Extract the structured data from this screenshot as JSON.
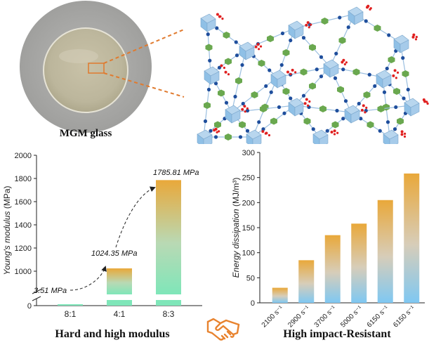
{
  "top": {
    "sample_caption": "MGM glass"
  },
  "colors": {
    "bar_top": "#e9a83a",
    "bar_mid": "#b9d9b4",
    "bar_bottom_left": "#7fe6b9",
    "bar_bottom_right": "#7fc8f2",
    "connector": "#e07a2e",
    "cube": "#8fc0e6",
    "green_node": "#6aa84f",
    "blue_node": "#1f4e9c",
    "red_node": "#e02020"
  },
  "chart_data": [
    {
      "type": "bar",
      "title": "Hard and high modulus",
      "ylabel": "Young's modulus (MPa)",
      "categories": [
        "8:1",
        "4:1",
        "8:3"
      ],
      "values": [
        3.51,
        1024.35,
        1785.81
      ],
      "value_labels": [
        "3.51 MPa",
        "1024.35 MPa",
        "1785.81 MPa"
      ],
      "ylim": [
        0,
        2000
      ],
      "yticks": [
        "0",
        "1000",
        "1200",
        "1400",
        "1600",
        "1800",
        "2000"
      ],
      "axis_break": true
    },
    {
      "type": "bar",
      "title": "High impact-Resistant",
      "ylabel": "Energy dissipation (MJ/m³)",
      "categories": [
        "2100 s⁻¹",
        "2900 s⁻¹",
        "3700 s⁻¹",
        "5000 s⁻¹",
        "6150 s⁻¹",
        "6150 s⁻¹"
      ],
      "values": [
        30,
        85,
        135,
        158,
        205,
        258
      ],
      "ylim": [
        0,
        300
      ],
      "yticks": [
        "0",
        "50",
        "100",
        "150",
        "200",
        "250",
        "300"
      ]
    }
  ]
}
